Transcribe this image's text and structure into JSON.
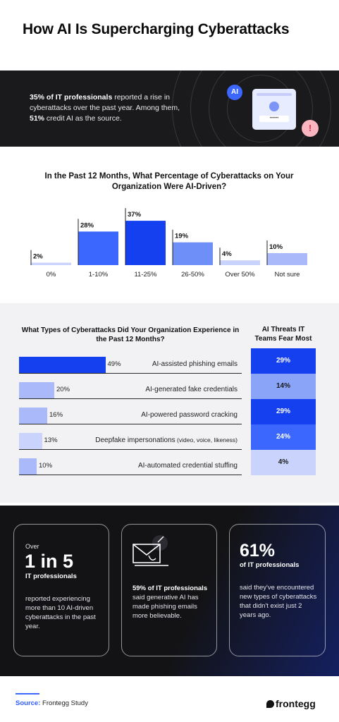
{
  "title": "How AI Is Supercharging Cyberattacks",
  "intro": {
    "stat1": "35% of IT professionals",
    "text1": " reported a rise in cyberattacks over the past year. Among them, ",
    "stat2": "51%",
    "text2": " credit AI as the source.",
    "ai_badge": "AI",
    "password_mask": "••••••",
    "alert_symbol": "!"
  },
  "chart_data": [
    {
      "type": "bar",
      "title": "In the Past 12 Months, What Percentage of Cyberattacks on Your Organization Were AI-Driven?",
      "categories": [
        "0%",
        "1-10%",
        "11-25%",
        "26-50%",
        "Over 50%",
        "Not sure"
      ],
      "values": [
        2,
        28,
        37,
        19,
        4,
        10
      ],
      "value_labels": [
        "2%",
        "28%",
        "37%",
        "19%",
        "4%",
        "10%"
      ],
      "colors": [
        "#c9d3fb",
        "#3b67ff",
        "#1440f0",
        "#6e8ff8",
        "#c9d3fb",
        "#a9b9fa"
      ]
    },
    {
      "type": "bar",
      "orientation": "horizontal",
      "title": "What Types of Cyberattacks Did Your Organization Experience in the Past 12 Months?",
      "categories": [
        "AI-assisted phishing emails",
        "AI-generated fake credentials",
        "AI-powered password cracking",
        "Deepfake impersonations",
        "AI-automated credential stuffing"
      ],
      "category_notes": [
        "",
        "",
        "",
        "(video, voice, likeness)",
        ""
      ],
      "values": [
        49,
        20,
        16,
        13,
        10
      ],
      "value_labels": [
        "49%",
        "20%",
        "16%",
        "13%",
        "10%"
      ],
      "colors": [
        "#1440f0",
        "#a9b9fa",
        "#a9b9fa",
        "#c9d3fb",
        "#a9b9fa"
      ]
    },
    {
      "type": "table",
      "title": "AI Threats IT Teams Fear Most",
      "values": [
        29,
        14,
        29,
        24,
        4
      ],
      "value_labels": [
        "29%",
        "14%",
        "29%",
        "24%",
        "4%"
      ],
      "colors": [
        "#1440f0",
        "#8aa4f8",
        "#1440f0",
        "#3b67ff",
        "#c9d3fb"
      ]
    }
  ],
  "cards": {
    "card1": {
      "over": "Over",
      "big": "1 in 5",
      "sub": "IT professionals",
      "desc": "reported experiencing more than 10 AI-driven cyberattacks in the past year."
    },
    "card2": {
      "icon": "phishing-email-icon",
      "bold": "59% of IT professionals",
      "desc": " said generative AI has made phishing emails more believable."
    },
    "card3": {
      "big": "61%",
      "sub": "of IT professionals",
      "desc": "said they've encountered new types of cyberattacks that didn't exist just 2 years ago."
    }
  },
  "footer": {
    "source_label": "Source:",
    "source": " Frontegg Study",
    "logo": "frontegg"
  }
}
